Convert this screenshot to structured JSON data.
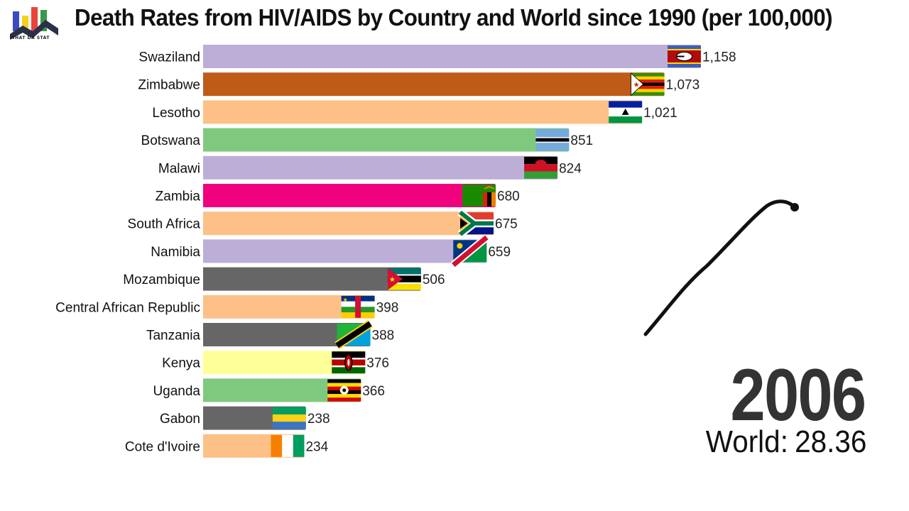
{
  "header": {
    "title": "Death Rates from HIV/AIDS by Country and World since 1990 (per 100,000)",
    "logo_text": "WHAT DA STAT"
  },
  "year": "2006",
  "world": {
    "label": "World:",
    "value": "28.36"
  },
  "chart_data": {
    "type": "bar",
    "orientation": "horizontal",
    "title": "Death Rates from HIV/AIDS by Country and World since 1990 (per 100,000)",
    "categories": [
      "Swaziland",
      "Zimbabwe",
      "Lesotho",
      "Botswana",
      "Malawi",
      "Zambia",
      "South Africa",
      "Namibia",
      "Mozambique",
      "Central African Republic",
      "Tanzania",
      "Kenya",
      "Uganda",
      "Gabon",
      "Cote d'Ivoire"
    ],
    "values": [
      1158,
      1073,
      1021,
      851,
      824,
      680,
      675,
      659,
      506,
      398,
      388,
      376,
      366,
      238,
      234
    ],
    "value_labels": [
      "1,158",
      "1,073",
      "1,021",
      "851",
      "824",
      "680",
      "675",
      "659",
      "506",
      "398",
      "388",
      "376",
      "366",
      "238",
      "234"
    ],
    "bar_colors": [
      "#bcaed6",
      "#bf5b17",
      "#fdc086",
      "#7fc97f",
      "#bcaed6",
      "#f0027f",
      "#fdc086",
      "#bcaed6",
      "#666666",
      "#fdc086",
      "#666666",
      "#ffff99",
      "#7fc97f",
      "#666666",
      "#fdc086"
    ],
    "flags": [
      "swaziland-flag",
      "zimbabwe-flag",
      "lesotho-flag",
      "botswana-flag",
      "malawi-flag",
      "zambia-flag",
      "south-africa-flag",
      "namibia-flag",
      "mozambique-flag",
      "central-african-republic-flag",
      "tanzania-flag",
      "kenya-flag",
      "uganda-flag",
      "gabon-flag",
      "cote-divoire-flag"
    ],
    "xlim": [
      0,
      1158
    ],
    "grid": false,
    "annotation": "hand-drawn curve line"
  }
}
